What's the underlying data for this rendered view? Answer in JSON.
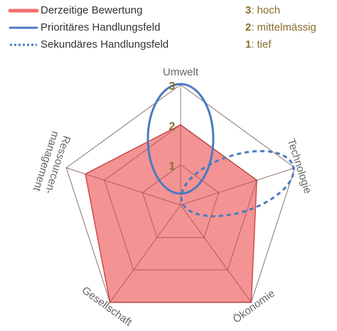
{
  "chart_data": {
    "type": "radar",
    "categories": [
      "Umwelt",
      "Technologie",
      "Ökonomie",
      "Gesellschaft",
      "Ressourcen-\nmanagement"
    ],
    "series": [
      {
        "name": "Derzeitige Bewertung",
        "color": "#ef6f6f",
        "values": [
          2,
          2,
          3,
          3,
          2.5
        ]
      }
    ],
    "overlays": [
      {
        "name": "Prioritäres Handlungsfeld",
        "color": "#4a7bc0",
        "style": "solid"
      },
      {
        "name": "Sekundäres Handlungsfeld",
        "color": "#4a7bc0",
        "style": "dashed"
      }
    ],
    "rlim": [
      0,
      3
    ],
    "rticks": [
      1,
      2,
      3
    ],
    "levels": [
      {
        "value": 3,
        "label": "hoch"
      },
      {
        "value": 2,
        "label": "mittelmässig"
      },
      {
        "value": 1,
        "label": "tief"
      }
    ]
  }
}
